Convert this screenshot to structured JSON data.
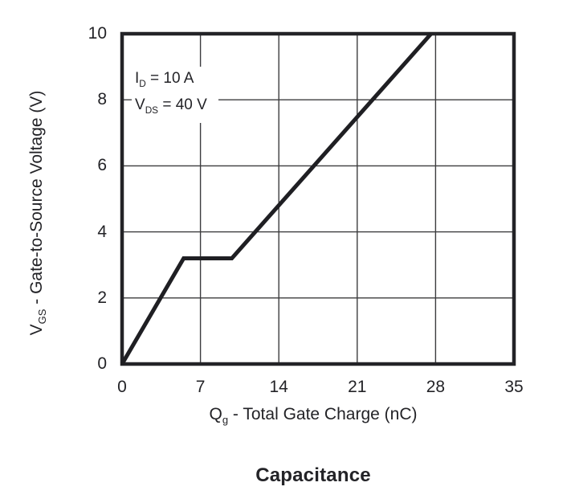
{
  "chart_data": {
    "type": "line",
    "title": "Capacitance",
    "xlabel": {
      "prefix": "Q",
      "sub": "g",
      "rest": " - Total Gate Charge (nC)"
    },
    "ylabel": {
      "prefix": "V",
      "sub": "GS",
      "rest": " - Gate-to-Source Voltage (V)"
    },
    "xlim": [
      0,
      35
    ],
    "ylim": [
      0,
      10
    ],
    "xticks": [
      0,
      7,
      14,
      21,
      28,
      35
    ],
    "yticks": [
      0,
      2,
      4,
      6,
      8,
      10
    ],
    "grid": true,
    "legend": "none",
    "series": [
      {
        "points": [
          [
            0,
            0
          ],
          [
            5.5,
            3.2
          ],
          [
            9.8,
            3.2
          ],
          [
            27.6,
            10
          ]
        ]
      }
    ],
    "annotation": {
      "lines": [
        {
          "prefix": "I",
          "sub": "D",
          "rest": " = 10 A"
        },
        {
          "prefix": "V",
          "sub": "DS",
          "rest": " = 40 V"
        }
      ]
    },
    "colors": {
      "curve": "#1f1f23",
      "frame": "#232327",
      "grid": "#3c3c3e",
      "text": "#232327",
      "background": "#ffffff"
    }
  }
}
